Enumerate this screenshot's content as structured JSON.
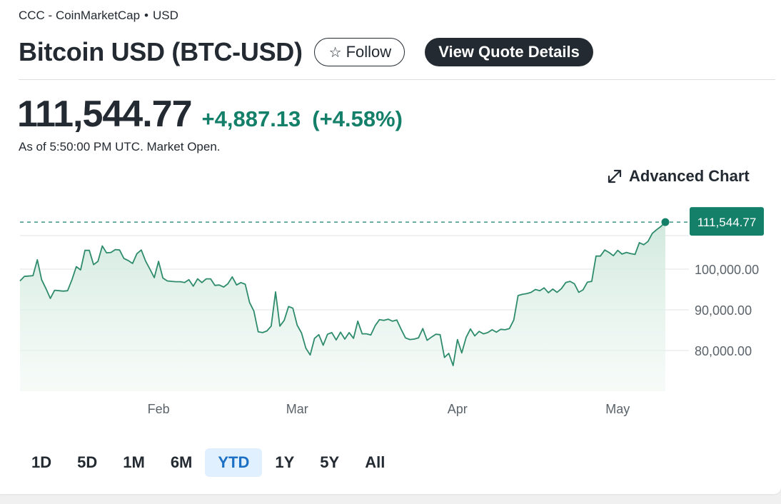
{
  "header": {
    "source": "CCC - CoinMarketCap",
    "separator": "•",
    "currency": "USD",
    "title": "Bitcoin USD (BTC-USD)",
    "follow_label": "Follow",
    "follow_icon": "star-icon",
    "view_quote_label": "View Quote Details"
  },
  "quote": {
    "price": "111,544.77",
    "change": "+4,887.13",
    "change_percent": "(+4.58%)",
    "as_of": "As of 5:50:00 PM UTC. Market Open."
  },
  "advanced_chart_label": "Advanced Chart",
  "colors": {
    "up": "#15806a",
    "line": "#2e8c6c",
    "fill": "#d6ede3",
    "active_range_bg": "#e0f0ff",
    "active_range_text": "#1b6fc4",
    "dark_button": "#232a31"
  },
  "ranges": [
    "1D",
    "5D",
    "1M",
    "6M",
    "YTD",
    "1Y",
    "5Y",
    "All"
  ],
  "active_range": "YTD",
  "chart_data": {
    "type": "area",
    "x_tick_labels": [
      "Feb",
      "Mar",
      "Apr",
      "May"
    ],
    "y_tick_labels": [
      "100,000.00",
      "90,000.00",
      "80,000.00"
    ],
    "y_ticks": [
      100000,
      90000,
      80000
    ],
    "ylim": [
      70000,
      113500
    ],
    "current_value": 111544.77,
    "current_label": "111,544.77",
    "grid": true,
    "values": [
      97100,
      98200,
      98300,
      98400,
      102300,
      97400,
      95200,
      92800,
      94800,
      94700,
      94600,
      94700,
      97400,
      100600,
      99800,
      104600,
      104600,
      101100,
      101900,
      105700,
      104000,
      104100,
      104800,
      104700,
      102600,
      102100,
      101400,
      103800,
      104700,
      102000,
      100000,
      97900,
      101900,
      97800,
      97100,
      97000,
      96900,
      96900,
      96700,
      97400,
      95800,
      97600,
      96700,
      97600,
      97600,
      96000,
      96100,
      95600,
      96400,
      98100,
      96100,
      96700,
      96300,
      91800,
      89700,
      84600,
      84400,
      84800,
      86000,
      94400,
      86000,
      87400,
      90800,
      90400,
      86200,
      84300,
      80600,
      78900,
      83000,
      83900,
      81300,
      84000,
      84400,
      82600,
      84500,
      82800,
      84400,
      83000,
      87200,
      84100,
      84100,
      83800,
      86100,
      87600,
      87400,
      87700,
      87200,
      87500,
      85200,
      83100,
      82700,
      82800,
      83100,
      85400,
      82500,
      83300,
      84000,
      83900,
      78300,
      79300,
      76300,
      82700,
      79400,
      83200,
      85300,
      83600,
      84700,
      84100,
      84400,
      85100,
      84500,
      85200,
      85100,
      85400,
      87500,
      93500,
      93800,
      94000,
      94300,
      95000,
      94700,
      95400,
      94200,
      95100,
      94300,
      95200,
      96700,
      97000,
      96400,
      94300,
      94900,
      96800,
      97000,
      103200,
      103200,
      104700,
      104100,
      103300,
      104600,
      103700,
      104100,
      103800,
      103600,
      106500,
      106000,
      106800,
      108800,
      109700,
      110500,
      111544.77
    ]
  }
}
